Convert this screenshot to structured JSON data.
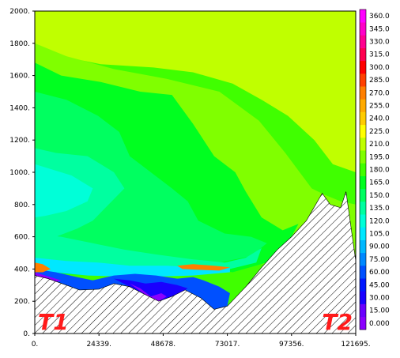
{
  "chart_data": {
    "type": "heatmap",
    "title": "",
    "xlabel": "",
    "ylabel": "",
    "xlim": [
      0,
      121695
    ],
    "ylim": [
      0,
      2000
    ],
    "x_tick_labels": [
      "0.",
      "24339.",
      "48678.",
      "73017.",
      "97356.",
      "121695."
    ],
    "x_tick_values": [
      0,
      24339,
      48678,
      73017,
      97356,
      121695
    ],
    "y_tick_labels": [
      "0.",
      "200.",
      "400.",
      "600.",
      "800.",
      "1000.",
      "1200.",
      "1400.",
      "1600.",
      "1800.",
      "2000."
    ],
    "y_tick_values": [
      0,
      200,
      400,
      600,
      800,
      1000,
      1200,
      1400,
      1600,
      1800,
      2000
    ],
    "colorbar": {
      "labels": [
        "0.000",
        "15.00",
        "30.00",
        "45.00",
        "60.00",
        "75.00",
        "90.00",
        "105.0",
        "120.0",
        "135.0",
        "150.0",
        "165.0",
        "180.0",
        "195.0",
        "210.0",
        "225.0",
        "240.0",
        "255.0",
        "270.0",
        "285.0",
        "300.0",
        "315.0",
        "330.0",
        "345.0",
        "360.0"
      ],
      "colors": [
        "#8a00ff",
        "#6a00ff",
        "#1a00ff",
        "#0018ff",
        "#0050ff",
        "#0088ff",
        "#00b8ff",
        "#00e8ff",
        "#00ffd8",
        "#00ffa0",
        "#00ff60",
        "#00ff20",
        "#40ff00",
        "#80ff00",
        "#c0ff00",
        "#ffff00",
        "#ffcc00",
        "#ffaa00",
        "#ff7f00",
        "#ff4000",
        "#ff0000",
        "#ff0050",
        "#ff0090",
        "#ff00c8",
        "#ff00ff"
      ],
      "range": [
        0,
        360
      ]
    },
    "terrain_profile": [
      [
        0,
        360
      ],
      [
        5000,
        340
      ],
      [
        12000,
        300
      ],
      [
        17000,
        270
      ],
      [
        24339,
        275
      ],
      [
        30000,
        310
      ],
      [
        36000,
        290
      ],
      [
        42000,
        240
      ],
      [
        47000,
        200
      ],
      [
        52000,
        230
      ],
      [
        57000,
        270
      ],
      [
        63000,
        220
      ],
      [
        68000,
        150
      ],
      [
        73017,
        170
      ],
      [
        80000,
        290
      ],
      [
        86000,
        410
      ],
      [
        92000,
        520
      ],
      [
        97356,
        600
      ],
      [
        103000,
        700
      ],
      [
        109000,
        870
      ],
      [
        112000,
        800
      ],
      [
        116000,
        780
      ],
      [
        118000,
        880
      ],
      [
        121695,
        450
      ]
    ],
    "regions": [
      {
        "value": 240,
        "polygon": [
          [
            20000,
            2000
          ],
          [
            60000,
            2000
          ],
          [
            58000,
            1780
          ],
          [
            45000,
            1760
          ],
          [
            30000,
            1740
          ],
          [
            20000,
            1800
          ]
        ]
      },
      {
        "value": 240,
        "polygon": [
          [
            78000,
            2000
          ],
          [
            121695,
            2000
          ],
          [
            121695,
            1120
          ],
          [
            118000,
            1100
          ],
          [
            115000,
            1280
          ],
          [
            110000,
            1230
          ],
          [
            106000,
            1400
          ],
          [
            98000,
            1560
          ],
          [
            94000,
            1640
          ],
          [
            88000,
            1800
          ],
          [
            80000,
            1880
          ]
        ]
      },
      {
        "value": 210,
        "polygon": [
          [
            0,
            2000
          ],
          [
            121695,
            2000
          ],
          [
            121695,
            1000
          ],
          [
            113000,
            1050
          ],
          [
            106000,
            1200
          ],
          [
            96000,
            1350
          ],
          [
            86000,
            1450
          ],
          [
            75000,
            1550
          ],
          [
            60000,
            1620
          ],
          [
            45000,
            1650
          ],
          [
            25000,
            1670
          ],
          [
            10000,
            1720
          ],
          [
            0,
            1750
          ]
        ]
      },
      {
        "value": 195,
        "polygon": [
          [
            0,
            1800
          ],
          [
            12000,
            1720
          ],
          [
            30000,
            1640
          ],
          [
            50000,
            1580
          ],
          [
            70000,
            1500
          ],
          [
            85000,
            1320
          ],
          [
            95000,
            1120
          ],
          [
            105000,
            900
          ],
          [
            110000,
            860
          ],
          [
            116000,
            820
          ],
          [
            121695,
            800
          ],
          [
            121695,
            450
          ],
          [
            0,
            380
          ]
        ]
      },
      {
        "value": 165,
        "polygon": [
          [
            0,
            1680
          ],
          [
            10000,
            1600
          ],
          [
            25000,
            1560
          ],
          [
            40000,
            1500
          ],
          [
            52000,
            1480
          ],
          [
            60000,
            1300
          ],
          [
            68000,
            1100
          ],
          [
            76000,
            1000
          ],
          [
            80000,
            880
          ],
          [
            86000,
            720
          ],
          [
            94000,
            640
          ],
          [
            100000,
            680
          ],
          [
            96000,
            560
          ],
          [
            88000,
            440
          ],
          [
            75000,
            380
          ],
          [
            60000,
            420
          ],
          [
            40000,
            380
          ],
          [
            20000,
            360
          ],
          [
            0,
            380
          ]
        ]
      },
      {
        "value": 150,
        "polygon": [
          [
            0,
            1500
          ],
          [
            12000,
            1450
          ],
          [
            24000,
            1350
          ],
          [
            32000,
            1250
          ],
          [
            36000,
            1100
          ],
          [
            44000,
            1000
          ],
          [
            52000,
            900
          ],
          [
            58000,
            820
          ],
          [
            62000,
            700
          ],
          [
            72000,
            620
          ],
          [
            82000,
            600
          ],
          [
            88000,
            560
          ],
          [
            82000,
            480
          ],
          [
            70000,
            440
          ],
          [
            55000,
            440
          ],
          [
            40000,
            420
          ],
          [
            20000,
            420
          ],
          [
            0,
            420
          ]
        ]
      },
      {
        "value": 135,
        "polygon": [
          [
            0,
            1150
          ],
          [
            8000,
            1120
          ],
          [
            20000,
            1100
          ],
          [
            30000,
            1000
          ],
          [
            34000,
            900
          ],
          [
            28000,
            800
          ],
          [
            22000,
            700
          ],
          [
            16000,
            650
          ],
          [
            8000,
            600
          ],
          [
            0,
            580
          ]
        ]
      },
      {
        "value": 120,
        "polygon": [
          [
            0,
            1050
          ],
          [
            6000,
            1020
          ],
          [
            14000,
            980
          ],
          [
            22000,
            900
          ],
          [
            20000,
            820
          ],
          [
            12000,
            760
          ],
          [
            4000,
            730
          ],
          [
            0,
            720
          ]
        ]
      },
      {
        "value": 135,
        "polygon": [
          [
            0,
            620
          ],
          [
            10000,
            600
          ],
          [
            22000,
            560
          ],
          [
            34000,
            520
          ],
          [
            46000,
            490
          ],
          [
            60000,
            460
          ],
          [
            72000,
            440
          ],
          [
            80000,
            470
          ],
          [
            86000,
            530
          ],
          [
            84000,
            440
          ],
          [
            74000,
            400
          ],
          [
            60000,
            380
          ],
          [
            40000,
            370
          ],
          [
            20000,
            380
          ],
          [
            0,
            420
          ]
        ]
      },
      {
        "value": 105,
        "polygon": [
          [
            0,
            470
          ],
          [
            12000,
            450
          ],
          [
            24000,
            440
          ],
          [
            36000,
            420
          ],
          [
            50000,
            420
          ],
          [
            62000,
            410
          ],
          [
            74000,
            405
          ],
          [
            74000,
            380
          ],
          [
            60000,
            360
          ],
          [
            40000,
            350
          ],
          [
            20000,
            360
          ],
          [
            0,
            390
          ]
        ]
      },
      {
        "value": 60,
        "polygon": [
          [
            0,
            400
          ],
          [
            8000,
            380
          ],
          [
            16000,
            350
          ],
          [
            22000,
            330
          ],
          [
            30000,
            360
          ],
          [
            38000,
            370
          ],
          [
            46000,
            360
          ],
          [
            54000,
            340
          ],
          [
            60000,
            350
          ],
          [
            64000,
            330
          ],
          [
            70000,
            290
          ],
          [
            74000,
            250
          ],
          [
            73017,
            170
          ],
          [
            68000,
            150
          ],
          [
            63000,
            220
          ],
          [
            57000,
            270
          ],
          [
            52000,
            230
          ],
          [
            47000,
            200
          ],
          [
            42000,
            240
          ],
          [
            36000,
            290
          ],
          [
            30000,
            310
          ],
          [
            24339,
            275
          ],
          [
            17000,
            270
          ],
          [
            12000,
            300
          ],
          [
            5000,
            340
          ],
          [
            0,
            360
          ]
        ]
      },
      {
        "value": 30,
        "polygon": [
          [
            30000,
            340
          ],
          [
            36000,
            330
          ],
          [
            42000,
            310
          ],
          [
            48000,
            320
          ],
          [
            54000,
            300
          ],
          [
            58000,
            280
          ],
          [
            57000,
            270
          ],
          [
            52000,
            230
          ],
          [
            47000,
            200
          ],
          [
            42000,
            240
          ],
          [
            36000,
            290
          ]
        ]
      },
      {
        "value": 0,
        "polygon": [
          [
            36000,
            310
          ],
          [
            40000,
            280
          ],
          [
            44000,
            230
          ],
          [
            48000,
            250
          ],
          [
            50000,
            230
          ],
          [
            47000,
            200
          ],
          [
            42000,
            240
          ]
        ]
      },
      {
        "value": 270,
        "polygon": [
          [
            0,
            440
          ],
          [
            3000,
            430
          ],
          [
            6000,
            400
          ],
          [
            3000,
            380
          ],
          [
            0,
            380
          ]
        ]
      },
      {
        "value": 270,
        "polygon": [
          [
            54000,
            420
          ],
          [
            60000,
            430
          ],
          [
            68000,
            420
          ],
          [
            74000,
            410
          ],
          [
            70000,
            390
          ],
          [
            62000,
            395
          ],
          [
            56000,
            400
          ]
        ]
      },
      {
        "value": 0,
        "polygon": [
          [
            0,
            380
          ],
          [
            4000,
            360
          ],
          [
            10000,
            330
          ],
          [
            8000,
            320
          ],
          [
            3000,
            340
          ],
          [
            0,
            350
          ]
        ]
      }
    ],
    "annotations": [
      "T1",
      "T2"
    ]
  }
}
